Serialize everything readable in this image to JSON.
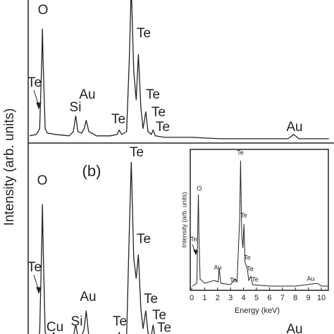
{
  "chart_data": [
    {
      "type": "line",
      "ylabel": "Intensity (arb. units)",
      "color": "#222222",
      "xlim": [
        0,
        11.12
      ],
      "ylim": [
        0,
        100
      ],
      "x": [
        0.05,
        0.3,
        0.42,
        0.5,
        0.52,
        0.55,
        0.62,
        0.7,
        1.0,
        1.5,
        1.65,
        1.74,
        1.82,
        1.95,
        2.05,
        2.12,
        2.22,
        2.5,
        3.0,
        3.25,
        3.33,
        3.42,
        3.6,
        3.7,
        3.77,
        3.86,
        3.95,
        4.03,
        4.12,
        4.2,
        4.3,
        4.38,
        4.5,
        4.57,
        4.65,
        5.0,
        6,
        7,
        8,
        9.5,
        9.71,
        9.9,
        11
      ],
      "values": [
        5,
        6,
        10,
        60,
        80,
        55,
        10,
        7,
        6,
        5,
        8,
        19,
        8,
        7,
        10,
        16,
        8,
        5,
        5,
        6,
        9,
        6,
        8,
        60,
        110,
        50,
        30,
        62,
        25,
        10,
        22,
        8,
        6,
        9,
        5,
        4,
        4,
        3,
        3,
        3,
        6,
        3,
        3
      ],
      "annotations": [
        "O",
        "Te",
        "Te",
        "Au",
        "Si",
        "Te",
        "Te",
        "Te",
        "Te",
        "Au"
      ]
    },
    {
      "type": "line",
      "panel_label": "(b)",
      "color": "#222222",
      "xlim": [
        0,
        11.12
      ],
      "ylim": [
        0,
        100
      ],
      "x": [
        0.05,
        0.3,
        0.42,
        0.5,
        0.52,
        0.55,
        0.62,
        0.8,
        0.93,
        1.05,
        1.5,
        1.65,
        1.74,
        1.82,
        1.95,
        2.05,
        2.12,
        2.22,
        2.5,
        3.0,
        3.25,
        3.33,
        3.42,
        3.6,
        3.7,
        3.77,
        3.86,
        3.95,
        4.03,
        4.12,
        4.2,
        4.3,
        4.38,
        4.5,
        4.57,
        4.65,
        5.0,
        6,
        7,
        8,
        9.5,
        9.71,
        9.9,
        11
      ],
      "values": [
        3,
        4,
        8,
        55,
        72,
        50,
        8,
        5,
        8,
        4,
        4,
        6,
        12,
        6,
        6,
        10,
        19,
        6,
        4,
        4,
        5,
        8,
        5,
        6,
        60,
        93,
        45,
        35,
        47,
        20,
        10,
        19,
        8,
        6,
        12,
        5,
        3,
        2,
        2,
        2,
        2,
        4,
        2,
        2
      ],
      "annotations": [
        "Te",
        "O",
        "Te",
        "Te",
        "Au",
        "Si",
        "Cu",
        "Te",
        "Te",
        "Te",
        "Te",
        "Au"
      ]
    },
    {
      "type": "line",
      "xlabel": "Energy (keV)",
      "ylabel": "Intensity (arb. units)",
      "color": "#222222",
      "xlim": [
        0,
        10.5
      ],
      "ylim": [
        0,
        100
      ],
      "xticks": [
        0,
        1,
        2,
        3,
        4,
        5,
        6,
        7,
        8,
        9,
        10
      ],
      "x": [
        0.05,
        0.4,
        0.5,
        0.52,
        0.56,
        0.65,
        1,
        1.74,
        2.05,
        2.12,
        2.25,
        3,
        3.33,
        3.5,
        3.7,
        3.77,
        3.86,
        3.95,
        4.03,
        4.12,
        4.3,
        4.4,
        4.57,
        4.7,
        6,
        8,
        9.71,
        10,
        10.5
      ],
      "values": [
        3,
        5,
        60,
        68,
        40,
        8,
        5,
        7,
        6,
        16,
        5,
        4,
        8,
        6,
        50,
        92,
        40,
        30,
        47,
        20,
        15,
        7,
        10,
        4,
        3,
        3,
        5,
        3,
        3
      ],
      "annotations": [
        "Te",
        "O",
        "Te",
        "Te",
        "Au",
        "Te",
        "Te",
        "Te",
        "Te",
        "Au"
      ]
    }
  ]
}
